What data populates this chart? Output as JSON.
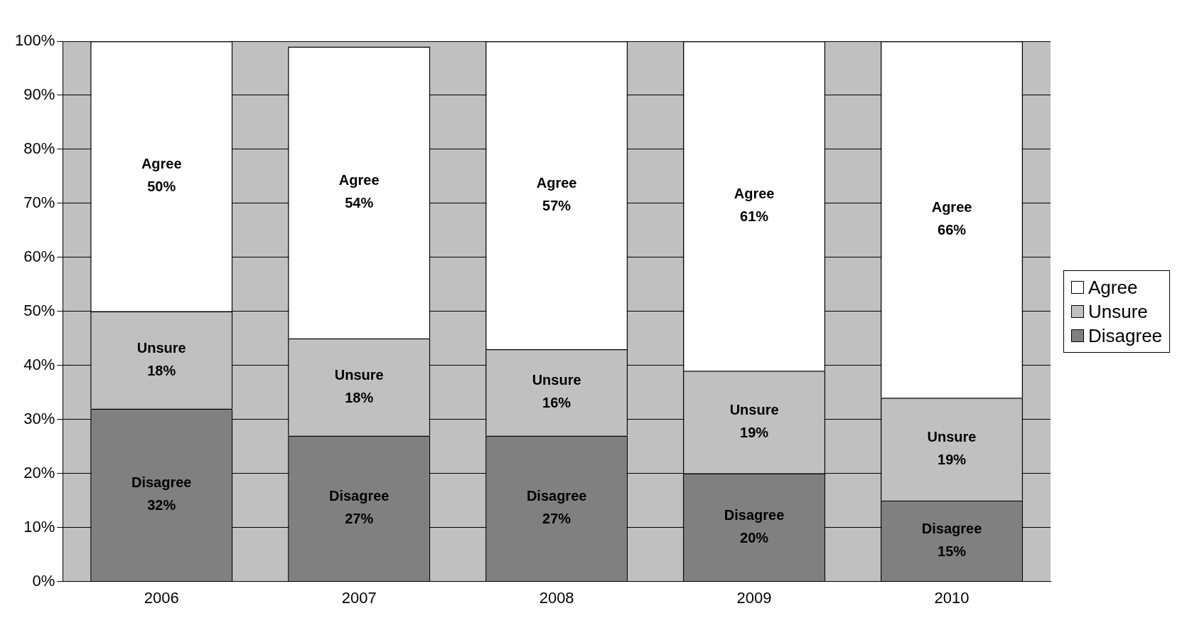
{
  "chart_data": {
    "type": "bar",
    "stacked": true,
    "categories": [
      "2006",
      "2007",
      "2008",
      "2009",
      "2010"
    ],
    "ylim": [
      0,
      100
    ],
    "yticks": [
      {
        "value": 0,
        "label": "0%"
      },
      {
        "value": 10,
        "label": "10%"
      },
      {
        "value": 20,
        "label": "20%"
      },
      {
        "value": 30,
        "label": "30%"
      },
      {
        "value": 40,
        "label": "40%"
      },
      {
        "value": 50,
        "label": "50%"
      },
      {
        "value": 60,
        "label": "60%"
      },
      {
        "value": 70,
        "label": "70%"
      },
      {
        "value": 80,
        "label": "80%"
      },
      {
        "value": 90,
        "label": "90%"
      },
      {
        "value": 100,
        "label": "100%"
      }
    ],
    "grid": "y",
    "legend": "right",
    "series": [
      {
        "name": "Disagree",
        "color": "#808080",
        "values": [
          32,
          27,
          27,
          20,
          15
        ],
        "value_labels": [
          "32%",
          "27%",
          "27%",
          "20%",
          "15%"
        ]
      },
      {
        "name": "Unsure",
        "color": "#c0c0c0",
        "values": [
          18,
          18,
          16,
          19,
          19
        ],
        "value_labels": [
          "18%",
          "18%",
          "16%",
          "19%",
          "19%"
        ]
      },
      {
        "name": "Agree",
        "color": "#ffffff",
        "values": [
          50,
          54,
          57,
          61,
          66
        ],
        "value_labels": [
          "50%",
          "54%",
          "57%",
          "61%",
          "66%"
        ]
      }
    ]
  }
}
